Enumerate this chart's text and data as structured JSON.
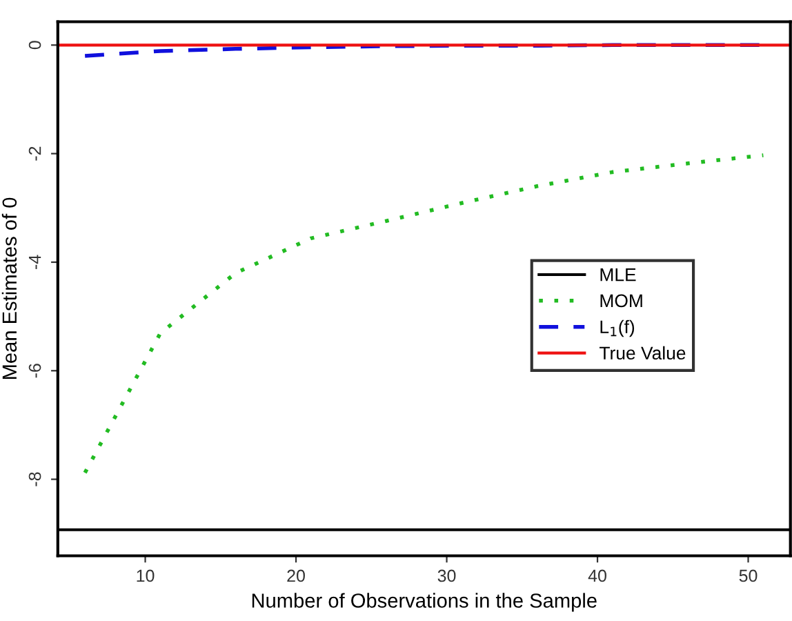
{
  "chart_data": {
    "type": "line",
    "xlabel": "Number of Observations in the Sample",
    "ylabel": "Mean Estimates of 0",
    "xlim": [
      4.2,
      52.8
    ],
    "xticks": [
      10,
      20,
      30,
      40,
      50
    ],
    "ylim": [
      -9.41,
      0.43
    ],
    "yticks": [
      -8,
      -6,
      -4,
      -2,
      0
    ],
    "x": [
      6,
      11,
      16,
      21,
      26,
      31,
      36,
      41,
      46,
      51
    ],
    "series": [
      {
        "name": "MOM",
        "color": "#22bb22",
        "line_style": "dotted",
        "values": [
          -7.88,
          -5.31,
          -4.2,
          -3.56,
          -3.24,
          -2.91,
          -2.6,
          -2.34,
          -2.18,
          -2.03
        ]
      },
      {
        "name": "L$_{1}$(f)",
        "color": "#1010dd",
        "line_style": "dashed",
        "values": [
          -0.2,
          -0.11,
          -0.07,
          -0.04,
          -0.02,
          -0.01,
          -0.01,
          0,
          0,
          0
        ]
      }
    ],
    "ref_lines": [
      {
        "axis": "y",
        "value": -8.93,
        "label": "MLE",
        "color": "#000000",
        "line_style": "solid"
      },
      {
        "axis": "y",
        "value": 0,
        "label": "True Value",
        "color": "#ee1111",
        "line_style": "solid"
      }
    ],
    "legend": "right",
    "grid": false
  }
}
